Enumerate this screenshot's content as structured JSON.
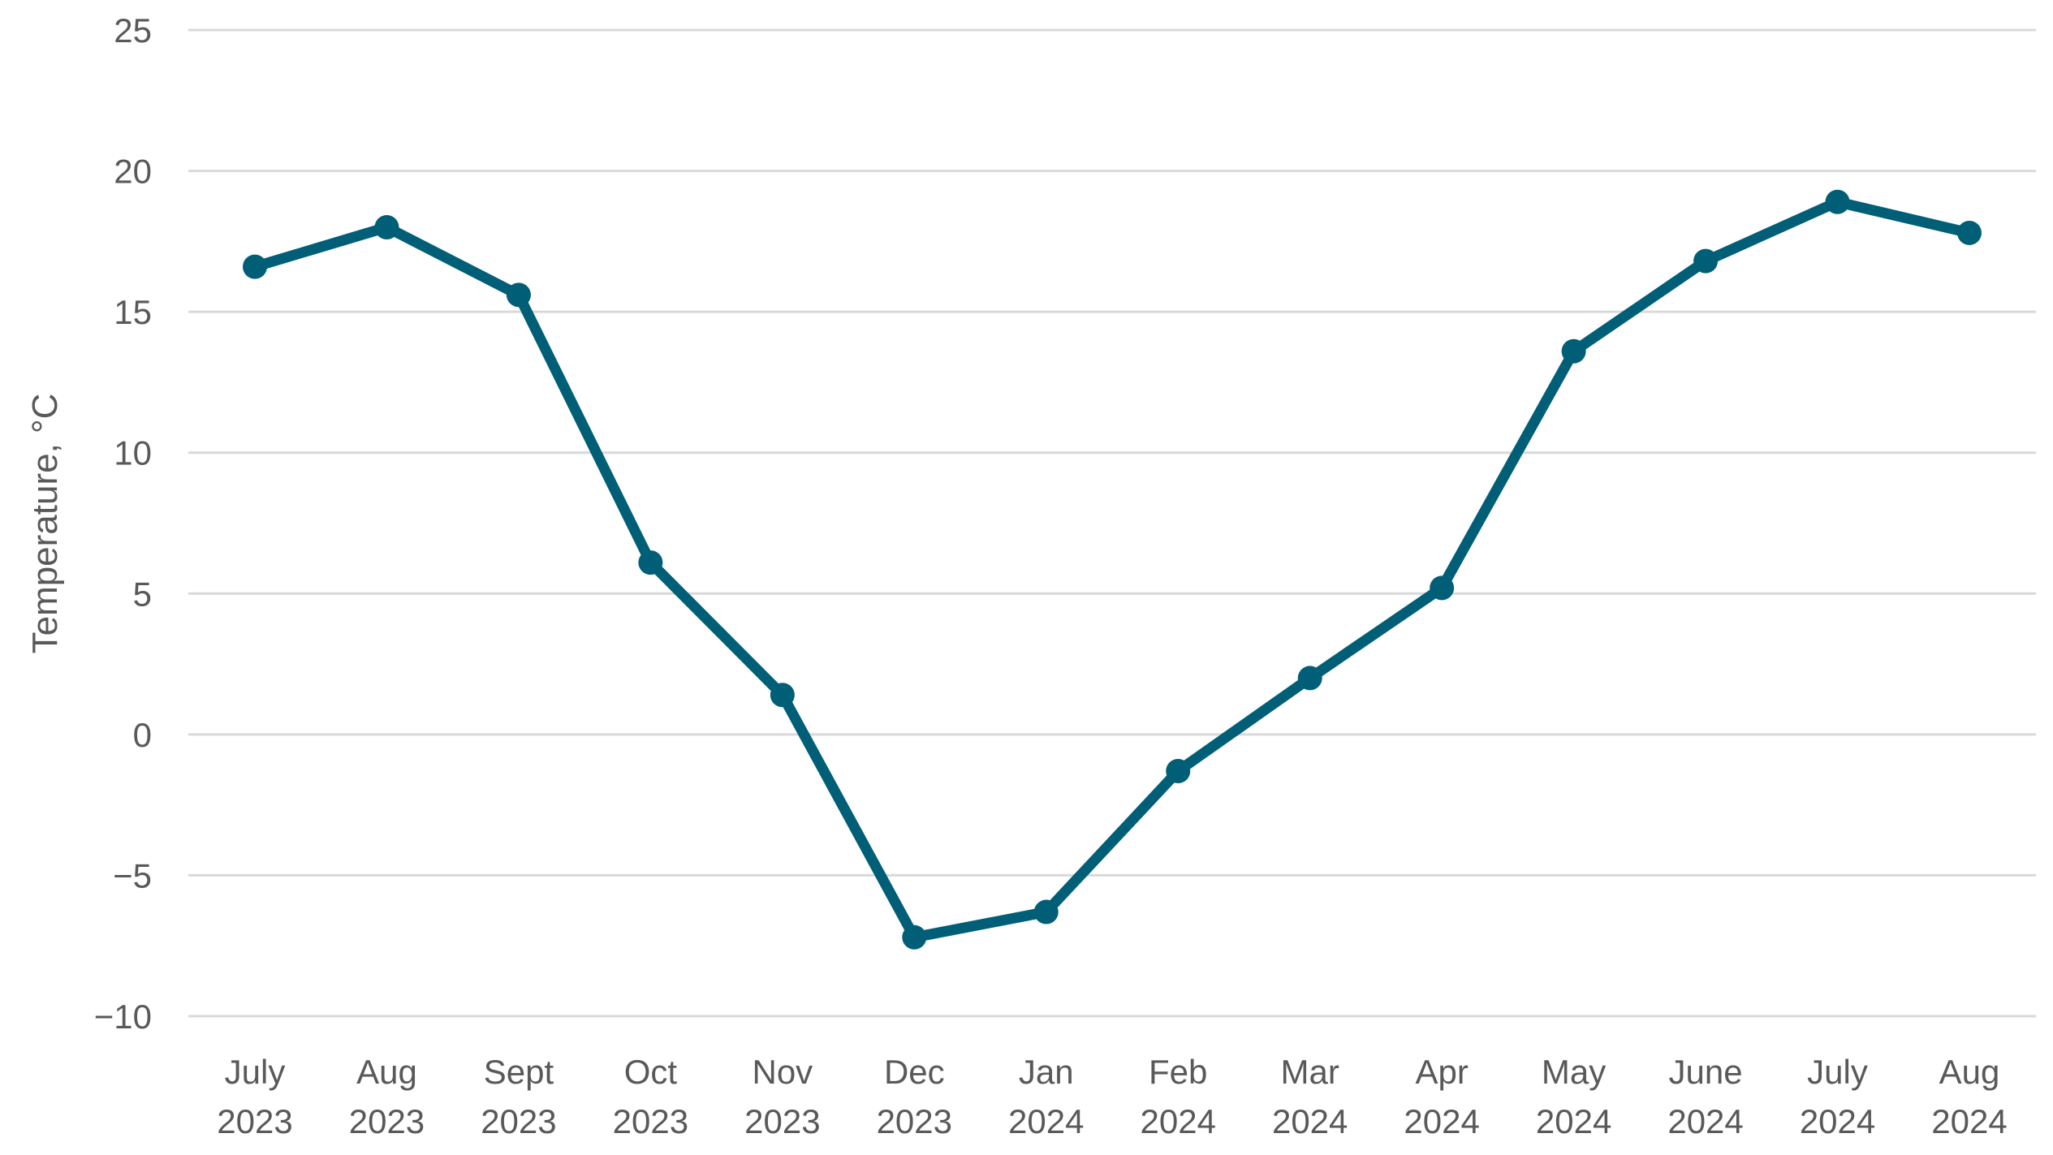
{
  "chart_data": {
    "type": "line",
    "title": "",
    "xlabel": "",
    "ylabel": "Temperature, °C",
    "ylim": [
      -10,
      25
    ],
    "yticks": [
      25,
      20,
      15,
      10,
      5,
      0,
      -5,
      -10
    ],
    "ytick_labels": [
      "25",
      "20",
      "15",
      "10",
      "5",
      "0",
      "−5",
      "−10"
    ],
    "grid": "horizontal",
    "legend": "none",
    "categories": [
      {
        "month": "July",
        "year": "2023"
      },
      {
        "month": "Aug",
        "year": "2023"
      },
      {
        "month": "Sept",
        "year": "2023"
      },
      {
        "month": "Oct",
        "year": "2023"
      },
      {
        "month": "Nov",
        "year": "2023"
      },
      {
        "month": "Dec",
        "year": "2023"
      },
      {
        "month": "Jan",
        "year": "2024"
      },
      {
        "month": "Feb",
        "year": "2024"
      },
      {
        "month": "Mar",
        "year": "2024"
      },
      {
        "month": "Apr",
        "year": "2024"
      },
      {
        "month": "May",
        "year": "2024"
      },
      {
        "month": "June",
        "year": "2024"
      },
      {
        "month": "July",
        "year": "2024"
      },
      {
        "month": "Aug",
        "year": "2024"
      }
    ],
    "series": [
      {
        "values": [
          16.6,
          18.0,
          15.6,
          6.1,
          1.4,
          -7.2,
          -6.3,
          -1.3,
          2.0,
          5.2,
          13.6,
          16.8,
          18.9,
          17.8
        ],
        "color": "#005f77"
      }
    ],
    "colors": {
      "line": "#005f77",
      "grid": "#d9d9d9",
      "text": "#595959"
    }
  }
}
